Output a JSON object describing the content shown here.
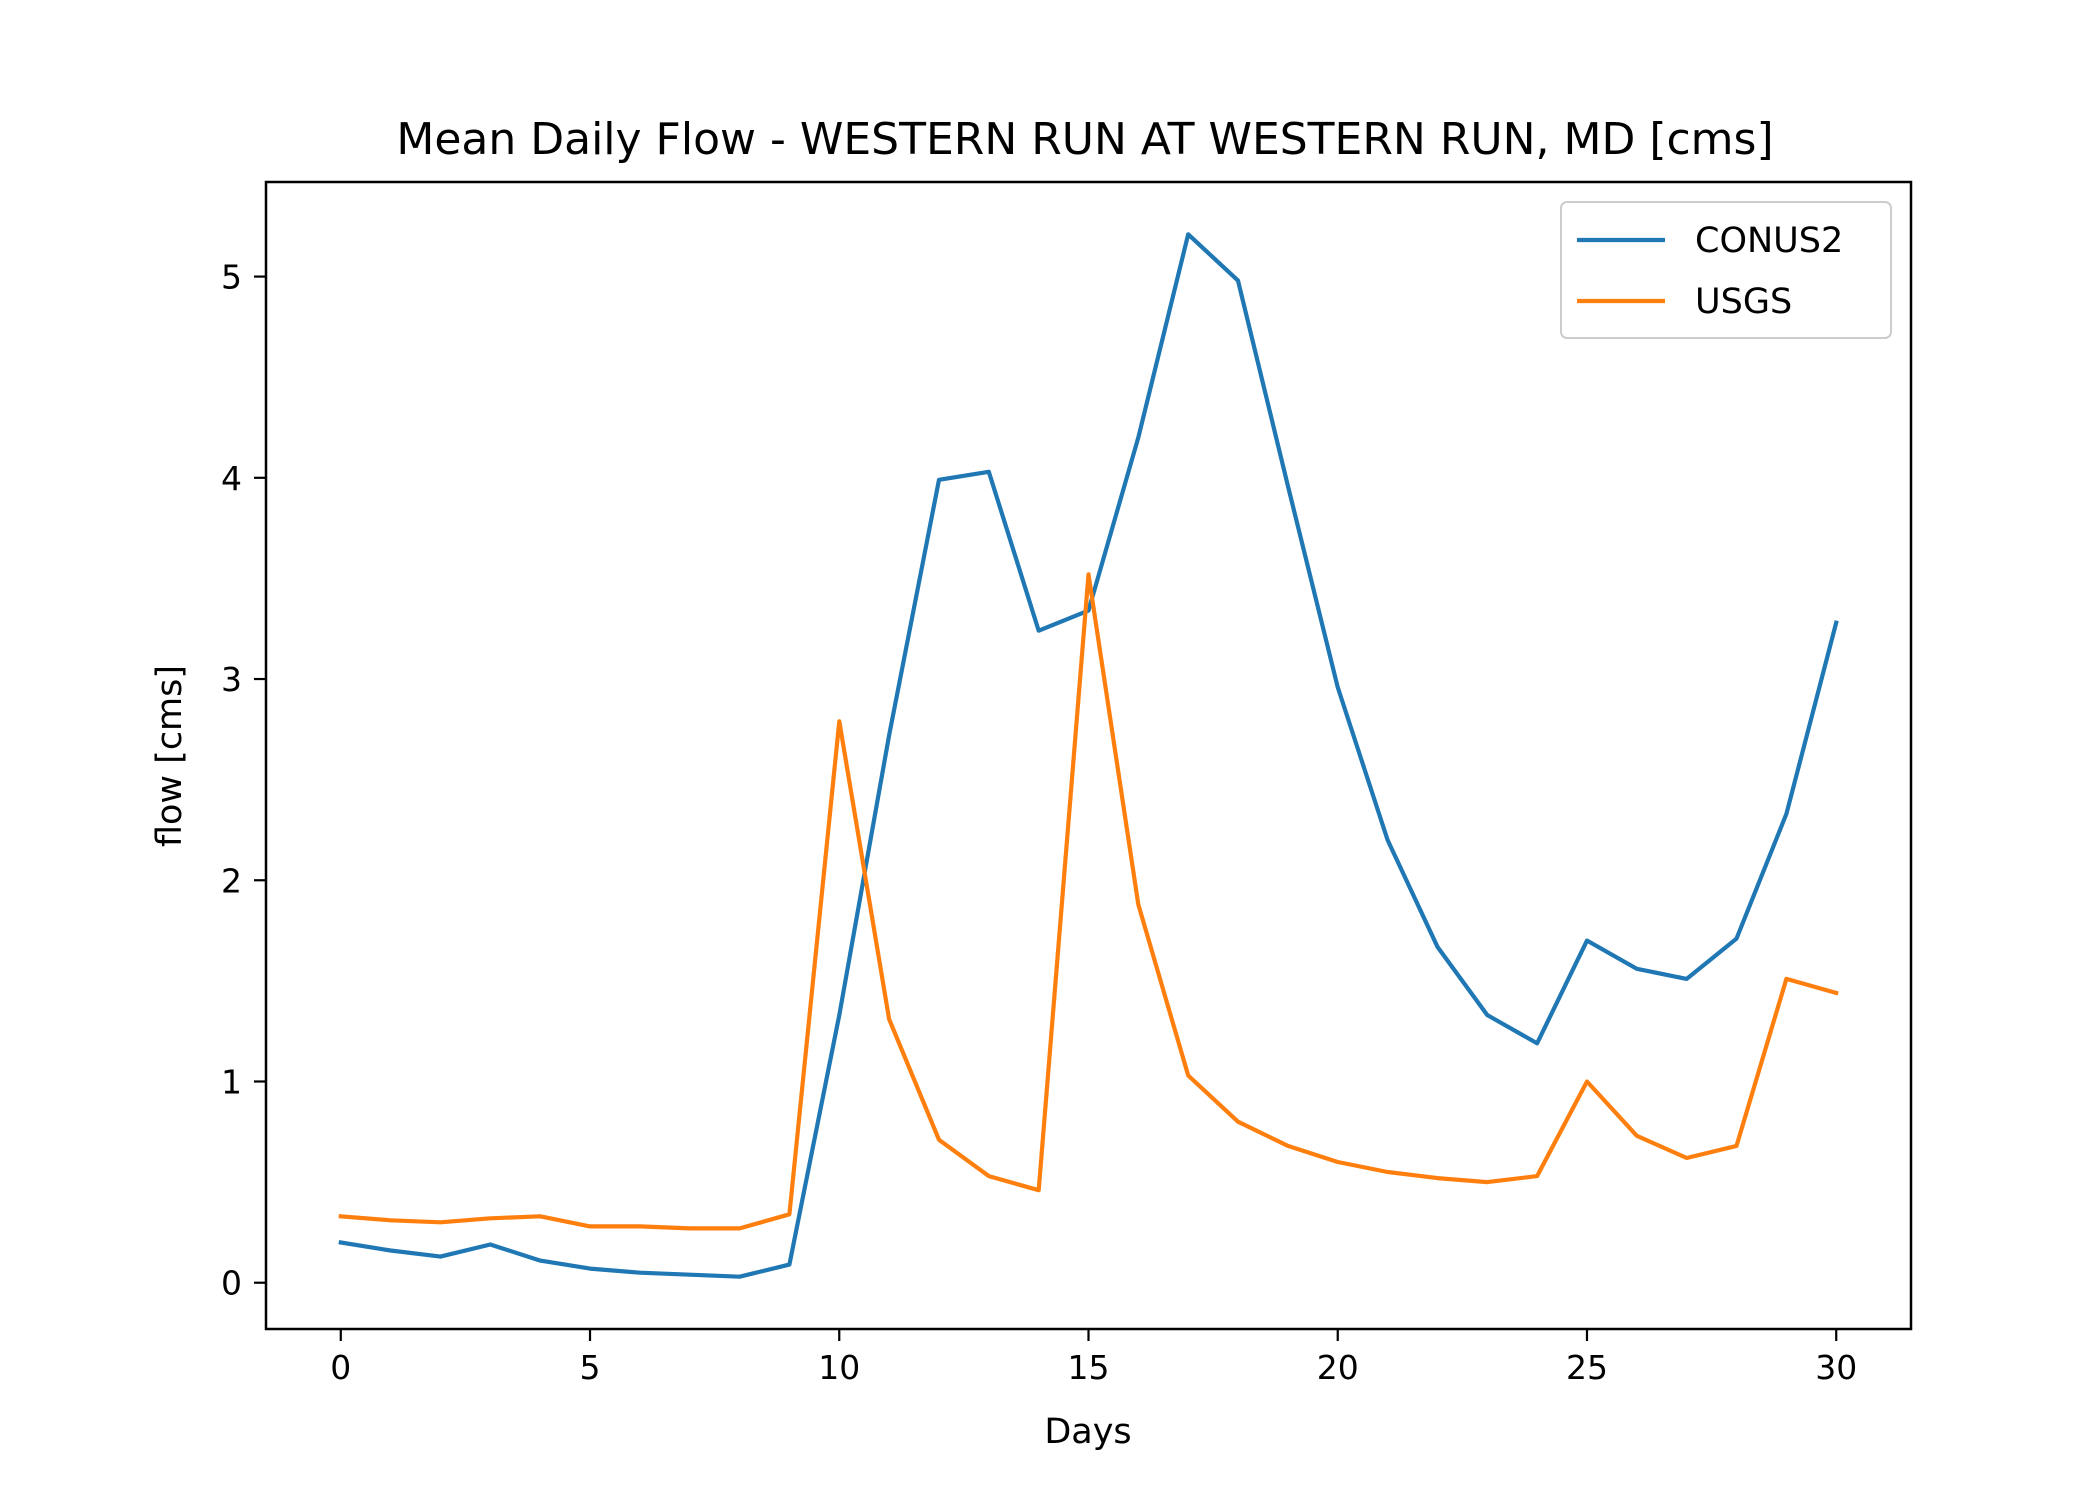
{
  "chart_data": {
    "type": "line",
    "title": "Mean Daily Flow - WESTERN RUN AT WESTERN RUN, MD [cms]",
    "xlabel": "Days",
    "ylabel": "flow [cms]",
    "xlim": [
      -1.5,
      31.5
    ],
    "ylim": [
      -0.23,
      5.47
    ],
    "xticks": [
      0,
      5,
      10,
      15,
      20,
      25,
      30
    ],
    "yticks": [
      0,
      1,
      2,
      3,
      4,
      5
    ],
    "grid": false,
    "legend_position": "top-right",
    "x": [
      0,
      1,
      2,
      3,
      4,
      5,
      6,
      7,
      8,
      9,
      10,
      11,
      12,
      13,
      14,
      15,
      16,
      17,
      18,
      19,
      20,
      21,
      22,
      23,
      24,
      25,
      26,
      27,
      28,
      29,
      30
    ],
    "series": [
      {
        "name": "CONUS2",
        "color": "#1f77b4",
        "values": [
          0.2,
          0.16,
          0.13,
          0.19,
          0.11,
          0.07,
          0.05,
          0.04,
          0.03,
          0.09,
          1.33,
          2.72,
          3.99,
          4.03,
          3.24,
          3.34,
          4.2,
          5.21,
          4.98,
          3.96,
          2.96,
          2.2,
          1.67,
          1.33,
          1.19,
          1.7,
          1.56,
          1.51,
          1.71,
          2.33,
          3.28
        ]
      },
      {
        "name": "USGS",
        "color": "#ff7f0e",
        "values": [
          0.33,
          0.31,
          0.3,
          0.32,
          0.33,
          0.28,
          0.28,
          0.27,
          0.27,
          0.34,
          2.79,
          1.31,
          0.71,
          0.53,
          0.46,
          3.52,
          1.88,
          1.03,
          0.8,
          0.68,
          0.6,
          0.55,
          0.52,
          0.5,
          0.53,
          1.0,
          0.73,
          0.62,
          0.68,
          1.51,
          1.44
        ]
      }
    ]
  }
}
